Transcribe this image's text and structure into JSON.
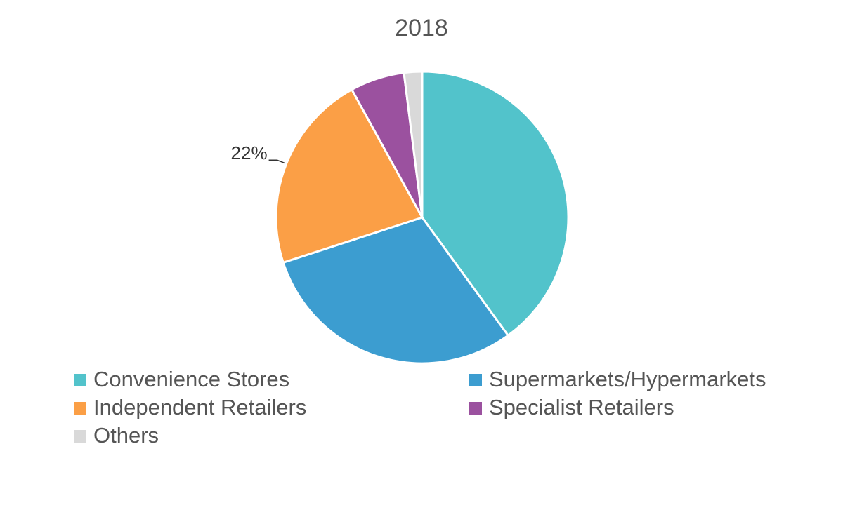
{
  "chart_data": {
    "type": "pie",
    "title": "2018",
    "categories": [
      "Convenience Stores",
      "Supermarkets/Hypermarkets",
      "Independent Retailers",
      "Specialist Retailers",
      "Others"
    ],
    "values": [
      40,
      30,
      22,
      6,
      2
    ],
    "value_labels": [
      null,
      null,
      "22%",
      null,
      null
    ],
    "colors": [
      "#52c3cb",
      "#3c9dd0",
      "#fb9f46",
      "#9b519f",
      "#d9d9d9"
    ]
  }
}
